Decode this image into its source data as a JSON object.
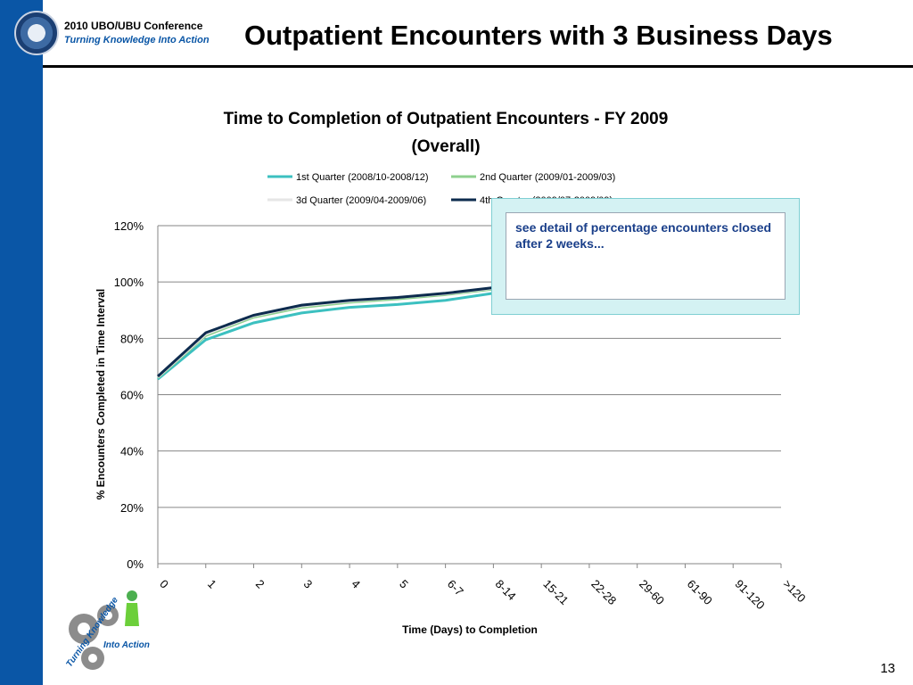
{
  "header": {
    "conference": "2010 UBO/UBU Conference",
    "tagline": "Turning Knowledge Into Action",
    "slide_title": "Outpatient Encounters with 3 Business Days"
  },
  "footer": {
    "page_number": "13"
  },
  "callout": {
    "text": "see detail of percentage encounters closed after 2 weeks..."
  },
  "logo": {
    "text_top": "Turning Knowledge",
    "text_bottom": "Into Action"
  },
  "colors": {
    "brand_blue": "#0a56a6",
    "q1": "#3cc0c0",
    "q2": "#8ed08e",
    "q3": "#e6e6e6",
    "q4": "#0d2b4e"
  },
  "chart_data": {
    "type": "line",
    "title_line1": "Time to Completion of Outpatient Encounters - FY 2009",
    "title_line2": "(Overall)",
    "xlabel": "Time (Days) to Completion",
    "ylabel": "% Encounters Completed in Time Interval",
    "categories": [
      "0",
      "1",
      "2",
      "3",
      "4",
      "5",
      "6-7",
      "8-14",
      "15-21",
      "22-28",
      "29-60",
      "61-90",
      "91-120",
      ">120"
    ],
    "y_ticks": [
      "0%",
      "20%",
      "40%",
      "60%",
      "80%",
      "100%",
      "120%"
    ],
    "ylim": [
      0,
      120
    ],
    "grid": true,
    "legend_position": "top",
    "series": [
      {
        "name": "1st Quarter (2008/10-2008/12)",
        "color": "#3cc0c0",
        "values": [
          65.5,
          79.5,
          85.5,
          89,
          91,
          92,
          93.5,
          96,
          97,
          97.5,
          98.5,
          99,
          99.2,
          100
        ]
      },
      {
        "name": "2nd Quarter (2009/01-2009/03)",
        "color": "#8ed08e",
        "values": [
          66,
          81,
          87.5,
          91,
          92.8,
          94,
          95.5,
          97.5,
          98.2,
          98.6,
          99.2,
          99.4,
          99.5,
          100
        ]
      },
      {
        "name": "3d Quarter (2009/04-2009/06)",
        "color": "#e6e6e6",
        "values": [
          66.2,
          81.5,
          88,
          91.5,
          93.2,
          94.5,
          95.8,
          97.8,
          98.4,
          98.8,
          99.3,
          99.5,
          99.6,
          100
        ]
      },
      {
        "name": "4th Quarter (2009/07-2009/09)",
        "color": "#0d2b4e",
        "values": [
          66.5,
          82,
          88.2,
          91.8,
          93.5,
          94.5,
          96,
          98,
          98.5,
          98.8,
          99.3,
          99.5,
          99.6,
          100
        ]
      }
    ]
  }
}
